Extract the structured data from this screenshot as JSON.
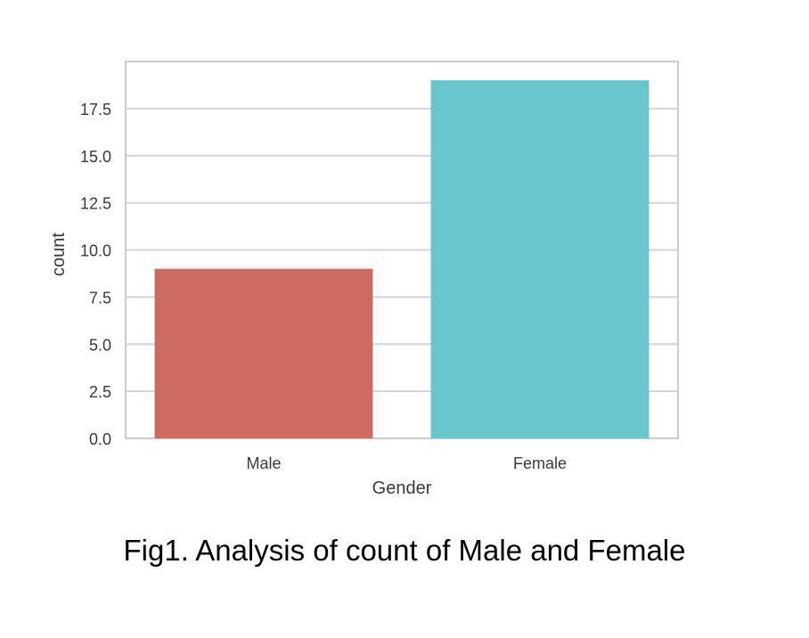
{
  "caption": "Fig1. Analysis of count of Male and Female",
  "chart_data": {
    "type": "bar",
    "categories": [
      "Male",
      "Female"
    ],
    "values": [
      9,
      19
    ],
    "colors": [
      "#cd6b62",
      "#69c6cd"
    ],
    "xlabel": "Gender",
    "ylabel": "count",
    "ylim": [
      0,
      20
    ],
    "yticks": [
      0.0,
      2.5,
      5.0,
      7.5,
      10.0,
      12.5,
      15.0,
      17.5
    ],
    "ytick_labels": [
      "0.0",
      "2.5",
      "5.0",
      "7.5",
      "10.0",
      "12.5",
      "15.0",
      "17.5"
    ],
    "grid": "horizontal",
    "legend": "none"
  }
}
